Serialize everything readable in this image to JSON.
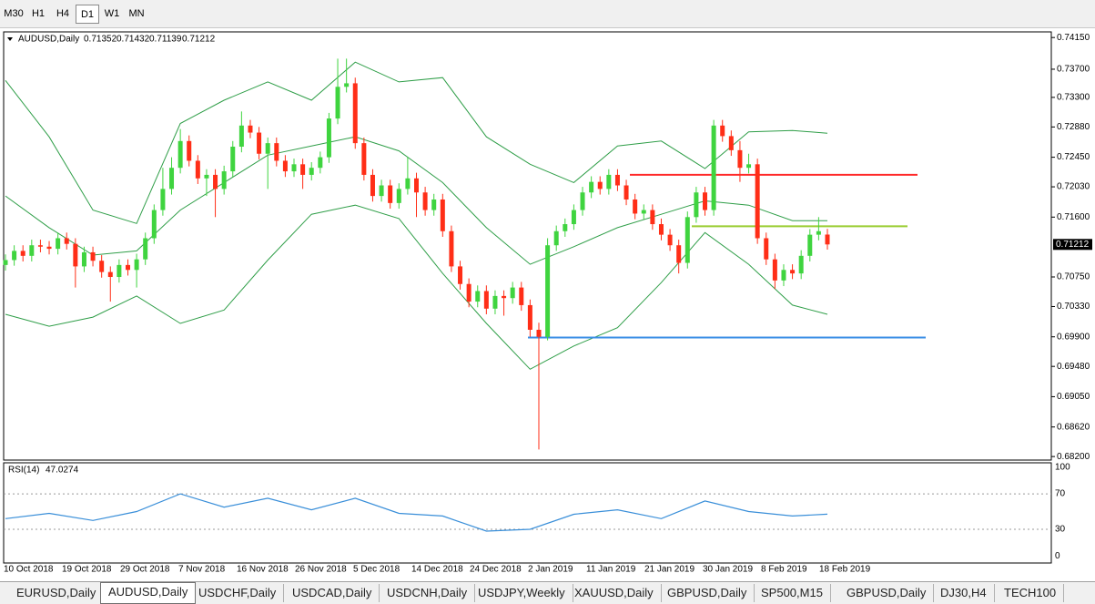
{
  "toolbar": [
    "M30",
    "H1",
    "H4",
    "D1",
    "W1",
    "MN"
  ],
  "active_timeframe": 3,
  "tabs": [
    "EURUSD,Daily",
    "AUDUSD,Daily",
    "USDCHF,Daily",
    "USDCAD,Daily",
    "USDCNH,Daily",
    "USDJPY,Weekly",
    "XAUUSD,Daily",
    "GBPUSD,Daily",
    "SP500,M15",
    "GBPUSD,Daily",
    "DJ30,H4",
    "TECH100"
  ],
  "active_tab": 1,
  "chart_data": {
    "type": "candlestick",
    "title": "AUDUSD,Daily",
    "up_color": "#3fd43f",
    "down_color": "#ff2e17",
    "band_color": "#2f9e48",
    "ylim": [
      0.6815,
      0.7423
    ],
    "yticks": [
      {
        "value": 0.7415,
        "label": "0.74150"
      },
      {
        "value": 0.737,
        "label": "0.73700"
      },
      {
        "value": 0.733,
        "label": "0.73300"
      },
      {
        "value": 0.7288,
        "label": "0.72880"
      },
      {
        "value": 0.7245,
        "label": "0.72450"
      },
      {
        "value": 0.7203,
        "label": "0.72030"
      },
      {
        "value": 0.716,
        "label": "0.71600"
      },
      {
        "value": 0.7075,
        "label": "0.70750"
      },
      {
        "value": 0.7033,
        "label": "0.70330"
      },
      {
        "value": 0.699,
        "label": "0.69900"
      },
      {
        "value": 0.6948,
        "label": "0.69480"
      },
      {
        "value": 0.6905,
        "label": "0.69050"
      },
      {
        "value": 0.6862,
        "label": "0.68620"
      },
      {
        "value": 0.682,
        "label": "0.68200"
      }
    ],
    "date_labels": [
      "10 Oct 2018",
      "19 Oct 2018",
      "29 Oct 2018",
      "7 Nov 2018",
      "16 Nov 2018",
      "26 Nov 2018",
      "5 Dec 2018",
      "14 Dec 2018",
      "24 Dec 2018",
      "2 Jan 2019",
      "11 Jan 2019",
      "21 Jan 2019",
      "30 Jan 2019",
      "8 Feb 2019",
      "18 Feb 2019"
    ],
    "candles": [
      [
        0.7092,
        0.7107,
        0.7084,
        0.7099
      ],
      [
        0.7099,
        0.712,
        0.7091,
        0.7112
      ],
      [
        0.7112,
        0.712,
        0.7097,
        0.7105
      ],
      [
        0.7105,
        0.7128,
        0.7097,
        0.712
      ],
      [
        0.712,
        0.7128,
        0.711,
        0.7118
      ],
      [
        0.7118,
        0.7126,
        0.7107,
        0.7115
      ],
      [
        0.7115,
        0.7138,
        0.7107,
        0.713
      ],
      [
        0.713,
        0.7138,
        0.7114,
        0.7122
      ],
      [
        0.7122,
        0.713,
        0.706,
        0.709
      ],
      [
        0.709,
        0.7118,
        0.7082,
        0.711
      ],
      [
        0.711,
        0.7118,
        0.709,
        0.7098
      ],
      [
        0.7098,
        0.7106,
        0.7074,
        0.7082
      ],
      [
        0.7082,
        0.709,
        0.704,
        0.7075
      ],
      [
        0.7075,
        0.71,
        0.7067,
        0.7092
      ],
      [
        0.7092,
        0.71,
        0.7077,
        0.7085
      ],
      [
        0.7085,
        0.7108,
        0.706,
        0.71
      ],
      [
        0.71,
        0.7138,
        0.7092,
        0.713
      ],
      [
        0.713,
        0.7178,
        0.7122,
        0.717
      ],
      [
        0.717,
        0.723,
        0.7162,
        0.72
      ],
      [
        0.72,
        0.7245,
        0.7192,
        0.723
      ],
      [
        0.723,
        0.7285,
        0.7222,
        0.7268
      ],
      [
        0.7268,
        0.7276,
        0.7232,
        0.724
      ],
      [
        0.724,
        0.7248,
        0.7207,
        0.7215
      ],
      [
        0.7215,
        0.7228,
        0.719,
        0.722
      ],
      [
        0.722,
        0.7228,
        0.716,
        0.72
      ],
      [
        0.72,
        0.7233,
        0.7192,
        0.7225
      ],
      [
        0.7225,
        0.7268,
        0.7217,
        0.726
      ],
      [
        0.726,
        0.731,
        0.7252,
        0.729
      ],
      [
        0.729,
        0.7298,
        0.7272,
        0.728
      ],
      [
        0.728,
        0.7288,
        0.7242,
        0.725
      ],
      [
        0.725,
        0.7273,
        0.72,
        0.7265
      ],
      [
        0.7265,
        0.7273,
        0.7232,
        0.724
      ],
      [
        0.724,
        0.7248,
        0.7217,
        0.7225
      ],
      [
        0.7225,
        0.7243,
        0.7217,
        0.7235
      ],
      [
        0.7235,
        0.7243,
        0.72,
        0.722
      ],
      [
        0.722,
        0.7238,
        0.7212,
        0.723
      ],
      [
        0.723,
        0.7253,
        0.7222,
        0.7245
      ],
      [
        0.7245,
        0.7308,
        0.7237,
        0.73
      ],
      [
        0.73,
        0.7385,
        0.7292,
        0.7345
      ],
      [
        0.7345,
        0.7385,
        0.7337,
        0.735
      ],
      [
        0.735,
        0.7358,
        0.7257,
        0.7265
      ],
      [
        0.7265,
        0.7273,
        0.7212,
        0.722
      ],
      [
        0.722,
        0.7228,
        0.7182,
        0.719
      ],
      [
        0.719,
        0.7213,
        0.7182,
        0.7205
      ],
      [
        0.7205,
        0.7213,
        0.7172,
        0.718
      ],
      [
        0.718,
        0.7208,
        0.7172,
        0.72
      ],
      [
        0.72,
        0.7245,
        0.7192,
        0.7215
      ],
      [
        0.7215,
        0.7223,
        0.716,
        0.7195
      ],
      [
        0.7195,
        0.7203,
        0.7162,
        0.717
      ],
      [
        0.717,
        0.7193,
        0.7162,
        0.7185
      ],
      [
        0.7185,
        0.7193,
        0.7132,
        0.714
      ],
      [
        0.714,
        0.7148,
        0.7082,
        0.709
      ],
      [
        0.709,
        0.7098,
        0.7057,
        0.7065
      ],
      [
        0.7065,
        0.7073,
        0.7032,
        0.704
      ],
      [
        0.704,
        0.7063,
        0.7032,
        0.7055
      ],
      [
        0.7055,
        0.7063,
        0.7022,
        0.703
      ],
      [
        0.703,
        0.7056,
        0.7022,
        0.7048
      ],
      [
        0.7048,
        0.7056,
        0.702,
        0.7045
      ],
      [
        0.7045,
        0.7068,
        0.7037,
        0.706
      ],
      [
        0.706,
        0.7068,
        0.7027,
        0.7035
      ],
      [
        0.7035,
        0.7043,
        0.699,
        0.7
      ],
      [
        0.7,
        0.701,
        0.683,
        0.699
      ],
      [
        0.699,
        0.713,
        0.6985,
        0.712
      ],
      [
        0.712,
        0.7148,
        0.7112,
        0.714
      ],
      [
        0.714,
        0.7158,
        0.7132,
        0.715
      ],
      [
        0.715,
        0.7178,
        0.7142,
        0.717
      ],
      [
        0.717,
        0.7203,
        0.7162,
        0.7195
      ],
      [
        0.7195,
        0.7218,
        0.7187,
        0.721
      ],
      [
        0.721,
        0.7218,
        0.7192,
        0.72
      ],
      [
        0.72,
        0.7228,
        0.7192,
        0.722
      ],
      [
        0.722,
        0.7228,
        0.7197,
        0.7205
      ],
      [
        0.7205,
        0.7213,
        0.7177,
        0.7185
      ],
      [
        0.7185,
        0.7193,
        0.7157,
        0.7165
      ],
      [
        0.7165,
        0.7178,
        0.7157,
        0.717
      ],
      [
        0.717,
        0.7178,
        0.7142,
        0.715
      ],
      [
        0.715,
        0.7158,
        0.7127,
        0.7135
      ],
      [
        0.7135,
        0.7143,
        0.7112,
        0.712
      ],
      [
        0.712,
        0.7128,
        0.708,
        0.7095
      ],
      [
        0.7095,
        0.7168,
        0.7087,
        0.716
      ],
      [
        0.716,
        0.7203,
        0.7152,
        0.7195
      ],
      [
        0.7195,
        0.7203,
        0.7162,
        0.717
      ],
      [
        0.717,
        0.7298,
        0.7162,
        0.729
      ],
      [
        0.729,
        0.7298,
        0.7267,
        0.7275
      ],
      [
        0.7275,
        0.7283,
        0.7247,
        0.7255
      ],
      [
        0.7255,
        0.7268,
        0.721,
        0.723
      ],
      [
        0.723,
        0.725,
        0.7222,
        0.7235
      ],
      [
        0.7235,
        0.7243,
        0.7122,
        0.713
      ],
      [
        0.713,
        0.7138,
        0.7092,
        0.71
      ],
      [
        0.71,
        0.7108,
        0.7058,
        0.707
      ],
      [
        0.707,
        0.7093,
        0.7062,
        0.7085
      ],
      [
        0.7085,
        0.7093,
        0.7072,
        0.708
      ],
      [
        0.708,
        0.7113,
        0.7072,
        0.7105
      ],
      [
        0.7105,
        0.7143,
        0.7097,
        0.7135
      ],
      [
        0.7135,
        0.716,
        0.7127,
        0.714
      ],
      [
        0.71352,
        0.71432,
        0.71139,
        0.71212
      ]
    ],
    "bands": {
      "x": [
        0,
        5,
        10,
        15,
        20,
        25,
        30,
        35,
        40,
        45,
        50,
        55,
        60,
        65,
        70,
        75,
        80,
        85,
        90,
        94
      ],
      "upper": [
        0.7354,
        0.7274,
        0.717,
        0.7151,
        0.7293,
        0.7326,
        0.7352,
        0.7326,
        0.738,
        0.7352,
        0.7358,
        0.7274,
        0.7235,
        0.7209,
        0.7261,
        0.7268,
        0.7229,
        0.7281,
        0.7283,
        0.7279
      ],
      "middle": [
        0.719,
        0.7145,
        0.7106,
        0.7112,
        0.717,
        0.7209,
        0.7248,
        0.7261,
        0.7274,
        0.7254,
        0.7209,
        0.7145,
        0.7093,
        0.7118,
        0.7145,
        0.7164,
        0.7183,
        0.7177,
        0.7155,
        0.7155
      ],
      "lower": [
        0.7022,
        0.7005,
        0.7018,
        0.7048,
        0.7009,
        0.7028,
        0.7099,
        0.7164,
        0.7177,
        0.7158,
        0.708,
        0.7009,
        0.6944,
        0.6977,
        0.7003,
        0.7067,
        0.7138,
        0.7093,
        0.7035,
        0.7022
      ]
    },
    "hlines": [
      {
        "value": 0.722,
        "color": "#ff2a2a"
      },
      {
        "value": 0.7147,
        "color": "#9acd32"
      },
      {
        "value": 0.6989,
        "color": "#3a8ee6"
      }
    ],
    "rsi": {
      "title": "RSI(14)",
      "color": "#3a8fd9",
      "ylim": [
        -8,
        105
      ],
      "yticks": [
        100,
        70,
        30,
        0
      ],
      "x": [
        0,
        5,
        10,
        15,
        20,
        25,
        30,
        35,
        40,
        45,
        50,
        55,
        60,
        65,
        70,
        75,
        80,
        85,
        90,
        94
      ],
      "values": [
        42,
        48,
        40,
        50,
        70,
        55,
        65,
        52,
        65,
        48,
        45,
        28,
        30,
        47,
        52,
        42,
        62,
        50,
        45,
        47.0274
      ]
    }
  }
}
